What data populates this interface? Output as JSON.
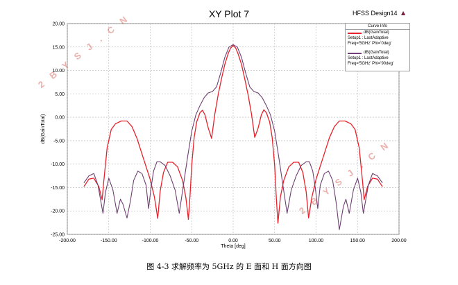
{
  "chart_data": {
    "type": "line",
    "title": "XY Plot 7",
    "design_name": "HFSS Design14",
    "xlabel": "Theta [deg]",
    "ylabel": "dB(GainTotal)",
    "xlim": [
      -200,
      200
    ],
    "ylim": [
      -25,
      20
    ],
    "xticks": [
      "-200.00",
      "-150.00",
      "-100.00",
      "-50.00",
      "0.00",
      "50.00",
      "100.00",
      "150.00",
      "200.00"
    ],
    "yticks": [
      "20.00",
      "15.00",
      "10.00",
      "5.00",
      "0.00",
      "-5.00",
      "-10.00",
      "-15.00",
      "-20.00",
      "-25.00"
    ],
    "grid": true,
    "legend_title": "Curve Info",
    "legend_position": "top-right",
    "series": [
      {
        "name": "dB(GainTotal)",
        "setup": "Setup1 : LastAdaptive",
        "params": "Freq='5GHz' Phi='0deg'",
        "color": "#e8202a",
        "x": [
          -180,
          -174,
          -168,
          -162,
          -158,
          -156,
          -152,
          -147,
          -142,
          -135,
          -128,
          -122,
          -116,
          -108,
          -100,
          -95,
          -91,
          -88,
          -84,
          -79,
          -73,
          -67,
          -61,
          -57,
          -54,
          -52,
          -50,
          -47,
          -44,
          -40,
          -37,
          -34,
          -30,
          -26,
          -22,
          -18,
          -14,
          -10,
          -6,
          -3,
          0,
          3,
          6,
          10,
          14,
          18,
          22,
          26,
          30,
          34,
          37,
          40,
          44,
          47,
          50,
          52,
          54,
          57,
          61,
          67,
          73,
          79,
          84,
          88,
          91,
          95,
          100,
          108,
          116,
          122,
          128,
          135,
          142,
          147,
          152,
          156,
          158,
          162,
          168,
          174,
          180
        ],
        "y": [
          -14.8,
          -13.2,
          -13.0,
          -14.8,
          -17.6,
          -13.6,
          -6.5,
          -2.6,
          -1.4,
          -0.8,
          -0.8,
          -2.0,
          -4.5,
          -8.9,
          -13.3,
          -17.0,
          -21.6,
          -15.8,
          -11.8,
          -9.6,
          -9.6,
          -10.6,
          -13.5,
          -17.2,
          -21.8,
          -16.6,
          -10.2,
          -4.3,
          -1.0,
          1.0,
          1.5,
          0.5,
          -2.3,
          -4.5,
          0.8,
          4.9,
          8.3,
          11.3,
          13.6,
          14.8,
          15.3,
          14.8,
          13.5,
          11.3,
          8.2,
          4.8,
          0.8,
          -4.3,
          -2.4,
          0.5,
          1.6,
          1.0,
          -1.0,
          -4.3,
          -10.3,
          -17.0,
          -22.6,
          -17.0,
          -13.5,
          -10.6,
          -9.6,
          -9.6,
          -11.8,
          -15.9,
          -21.5,
          -17.0,
          -13.2,
          -8.8,
          -4.4,
          -2.0,
          -0.8,
          -0.8,
          -1.4,
          -2.6,
          -6.5,
          -13.6,
          -17.6,
          -14.8,
          -13.0,
          -13.2,
          -14.8
        ]
      },
      {
        "name": "dB(GainTotal)",
        "setup": "Setup1 : LastAdaptive",
        "params": "Freq='5GHz' Phi='90deg'",
        "color": "#6e3f72",
        "x": [
          -180,
          -174,
          -168,
          -163,
          -157,
          -154,
          -150,
          -145,
          -140,
          -136,
          -133,
          -128,
          -124,
          -120,
          -115,
          -110,
          -105,
          -102,
          -99,
          -96,
          -92,
          -88,
          -82,
          -76,
          -70,
          -65,
          -60,
          -55,
          -50,
          -45,
          -40,
          -35,
          -30,
          -25,
          -20,
          -15,
          -10,
          -5,
          0,
          5,
          10,
          15,
          20,
          25,
          30,
          35,
          40,
          45,
          50,
          55,
          60,
          65,
          70,
          76,
          82,
          88,
          92,
          96,
          99,
          102,
          105,
          110,
          115,
          120,
          124,
          128,
          133,
          136,
          140,
          145,
          150,
          154,
          157,
          163,
          168,
          174,
          180
        ],
        "y": [
          -14.0,
          -12.5,
          -12.0,
          -14.5,
          -20.5,
          -16.0,
          -13.0,
          -15.5,
          -20.5,
          -17.5,
          -18.5,
          -21.5,
          -18.0,
          -13.5,
          -11.5,
          -12.0,
          -14.5,
          -19.5,
          -15.0,
          -11.5,
          -9.5,
          -9.5,
          -10.3,
          -12.5,
          -15.5,
          -20.5,
          -14.5,
          -8.5,
          -3.0,
          0.5,
          2.5,
          4.2,
          5.2,
          5.5,
          6.5,
          9.5,
          12.8,
          15.0,
          15.5,
          15.0,
          12.8,
          9.5,
          6.5,
          5.5,
          5.2,
          4.2,
          2.5,
          0.5,
          -3.0,
          -8.5,
          -14.5,
          -20.5,
          -15.5,
          -12.5,
          -10.3,
          -9.5,
          -9.5,
          -11.5,
          -15.0,
          -19.5,
          -14.5,
          -12.0,
          -11.5,
          -13.5,
          -18.0,
          -24.0,
          -19.0,
          -17.5,
          -20.5,
          -15.5,
          -13.0,
          -16.0,
          -20.5,
          -14.5,
          -12.0,
          -12.5,
          -14.0
        ]
      }
    ]
  },
  "watermarks": [
    "2 B Y S J . C N",
    "2 B Y S J . C N"
  ],
  "caption": "图 4-3  求解频率为 5GHz 的 E 面和 H 面方向图"
}
